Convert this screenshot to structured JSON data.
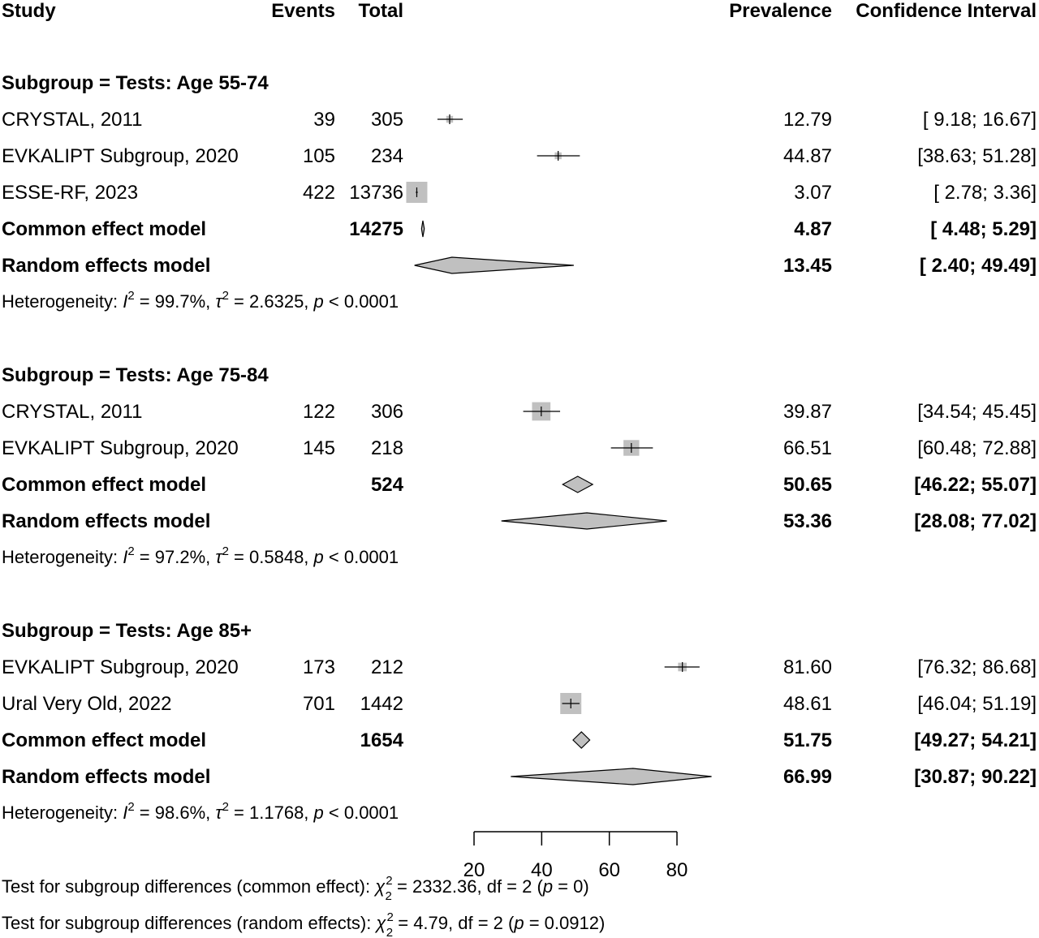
{
  "header": {
    "study": "Study",
    "events": "Events",
    "total": "Total",
    "prevalence": "Prevalence",
    "ci": "Confidence Interval"
  },
  "chart_data": {
    "type": "forest",
    "xlim": [
      20,
      80
    ],
    "xticks": [
      20,
      40,
      60,
      80
    ],
    "subgroups": [
      {
        "title": "Subgroup = Tests: Age 55-74",
        "studies": [
          {
            "name": "CRYSTAL, 2011",
            "events": "39",
            "total": "305",
            "prev": 12.79,
            "lo": 9.18,
            "hi": 16.67,
            "prev_text": "12.79",
            "ci_text": "[ 9.18; 16.67]",
            "weight": 0.2
          },
          {
            "name": "EVKALIPT Subgroup, 2020",
            "events": "105",
            "total": "234",
            "prev": 44.87,
            "lo": 38.63,
            "hi": 51.28,
            "prev_text": "44.87",
            "ci_text": "[38.63; 51.28]",
            "weight": 0.2
          },
          {
            "name": "ESSE-RF, 2023",
            "events": "422",
            "total": "13736",
            "prev": 3.07,
            "lo": 2.78,
            "hi": 3.36,
            "prev_text": "3.07",
            "ci_text": "[ 2.78;  3.36]",
            "weight": 1.0
          }
        ],
        "common": {
          "label": "Common effect model",
          "total": "14275",
          "prev": 4.87,
          "lo": 4.48,
          "hi": 5.29,
          "prev_text": "4.87",
          "ci_text": "[ 4.48;  5.29]"
        },
        "random": {
          "label": "Random effects model",
          "prev": 13.45,
          "lo": 2.4,
          "hi": 49.49,
          "prev_text": "13.45",
          "ci_text": "[ 2.40; 49.49]"
        },
        "het": {
          "prefix": "Heterogeneity: ",
          "i2": "I",
          "i2_val": " = 99.7%, ",
          "tau": "τ",
          "tau_val": " = 2.6325, ",
          "p": "p",
          "p_val": " < 0.0001"
        }
      },
      {
        "title": "Subgroup = Tests: Age 75-84",
        "studies": [
          {
            "name": "CRYSTAL, 2011",
            "events": "122",
            "total": "306",
            "prev": 39.87,
            "lo": 34.54,
            "hi": 45.45,
            "prev_text": "39.87",
            "ci_text": "[34.54; 45.45]",
            "weight": 0.85
          },
          {
            "name": "EVKALIPT Subgroup, 2020",
            "events": "145",
            "total": "218",
            "prev": 66.51,
            "lo": 60.48,
            "hi": 72.88,
            "prev_text": "66.51",
            "ci_text": "[60.48; 72.88]",
            "weight": 0.7
          }
        ],
        "common": {
          "label": "Common effect model",
          "total": "524",
          "prev": 50.65,
          "lo": 46.22,
          "hi": 55.07,
          "prev_text": "50.65",
          "ci_text": "[46.22; 55.07]"
        },
        "random": {
          "label": "Random effects model",
          "prev": 53.36,
          "lo": 28.08,
          "hi": 77.02,
          "prev_text": "53.36",
          "ci_text": "[28.08; 77.02]"
        },
        "het": {
          "prefix": "Heterogeneity: ",
          "i2": "I",
          "i2_val": " = 97.2%, ",
          "tau": "τ",
          "tau_val": " = 0.5848, ",
          "p": "p",
          "p_val": " < 0.0001"
        }
      },
      {
        "title": "Subgroup = Tests: Age 85+",
        "studies": [
          {
            "name": "EVKALIPT Subgroup, 2020",
            "events": "173",
            "total": "212",
            "prev": 81.6,
            "lo": 76.32,
            "hi": 86.68,
            "prev_text": "81.60",
            "ci_text": "[76.32; 86.68]",
            "weight": 0.3
          },
          {
            "name": "Ural Very Old, 2022",
            "events": "701",
            "total": "1442",
            "prev": 48.61,
            "lo": 46.04,
            "hi": 51.19,
            "prev_text": "48.61",
            "ci_text": "[46.04; 51.19]",
            "weight": 1.0
          }
        ],
        "common": {
          "label": "Common effect model",
          "total": "1654",
          "prev": 51.75,
          "lo": 49.27,
          "hi": 54.21,
          "prev_text": "51.75",
          "ci_text": "[49.27; 54.21]"
        },
        "random": {
          "label": "Random effects model",
          "prev": 66.99,
          "lo": 30.87,
          "hi": 90.22,
          "prev_text": "66.99",
          "ci_text": "[30.87; 90.22]"
        },
        "het": {
          "prefix": "Heterogeneity: ",
          "i2": "I",
          "i2_val": " = 98.6%, ",
          "tau": "τ",
          "tau_val": " = 1.1768, ",
          "p": "p",
          "p_val": " < 0.0001"
        }
      }
    ],
    "tests": [
      {
        "prefix": "Test for subgroup differences (common effect): ",
        "chi": "χ",
        "sup": "2",
        "sub": "2",
        "rest1": " = 2332.36, df = 2 (",
        "p": "p",
        "rest2": " = 0)"
      },
      {
        "prefix": "Test for subgroup differences (random effects): ",
        "chi": "χ",
        "sup": "2",
        "sub": "2",
        "rest1": " = 4.79, df = 2 (",
        "p": "p",
        "rest2": " = 0.0912)"
      }
    ],
    "colors": {
      "box": "#c0c0c0",
      "diamond": "#c0c0c0",
      "line": "#000000"
    }
  }
}
